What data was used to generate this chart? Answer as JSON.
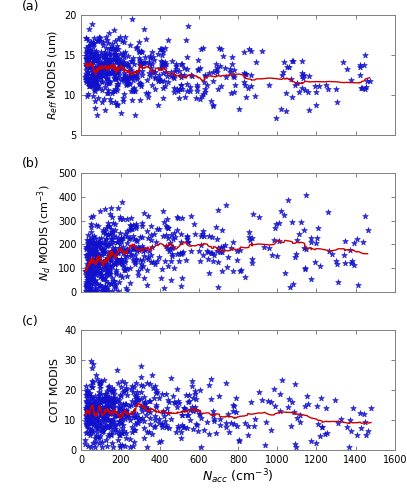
{
  "panel_a": {
    "label": "(a)",
    "ylabel": "$R_{eff}$ MODIS (um)",
    "ylim": [
      5,
      20
    ],
    "yticks": [
      5,
      10,
      15,
      20
    ],
    "running_mean_window": 30
  },
  "panel_b": {
    "label": "(b)",
    "ylabel": "$N_d$ MODIS (cm$^{-3}$)",
    "ylim": [
      0,
      500
    ],
    "yticks": [
      0,
      100,
      200,
      300,
      400,
      500
    ],
    "running_mean_window": 30
  },
  "panel_c": {
    "label": "(c)",
    "ylabel": "COT MODIS",
    "ylim": [
      0,
      40
    ],
    "yticks": [
      0,
      10,
      20,
      30,
      40
    ],
    "running_mean_window": 30
  },
  "xlabel": "$N_{acc}$ (cm$^{-3}$)",
  "xlim": [
    0,
    1600
  ],
  "xticks": [
    0,
    200,
    400,
    600,
    800,
    1000,
    1200,
    1400,
    1600
  ],
  "scatter_color": "#1111CC",
  "line_color": "#CC0000",
  "marker": "*",
  "marker_size": 18,
  "background_color": "#ffffff",
  "fig_width": 4.07,
  "fig_height": 5.0,
  "dpi": 100
}
